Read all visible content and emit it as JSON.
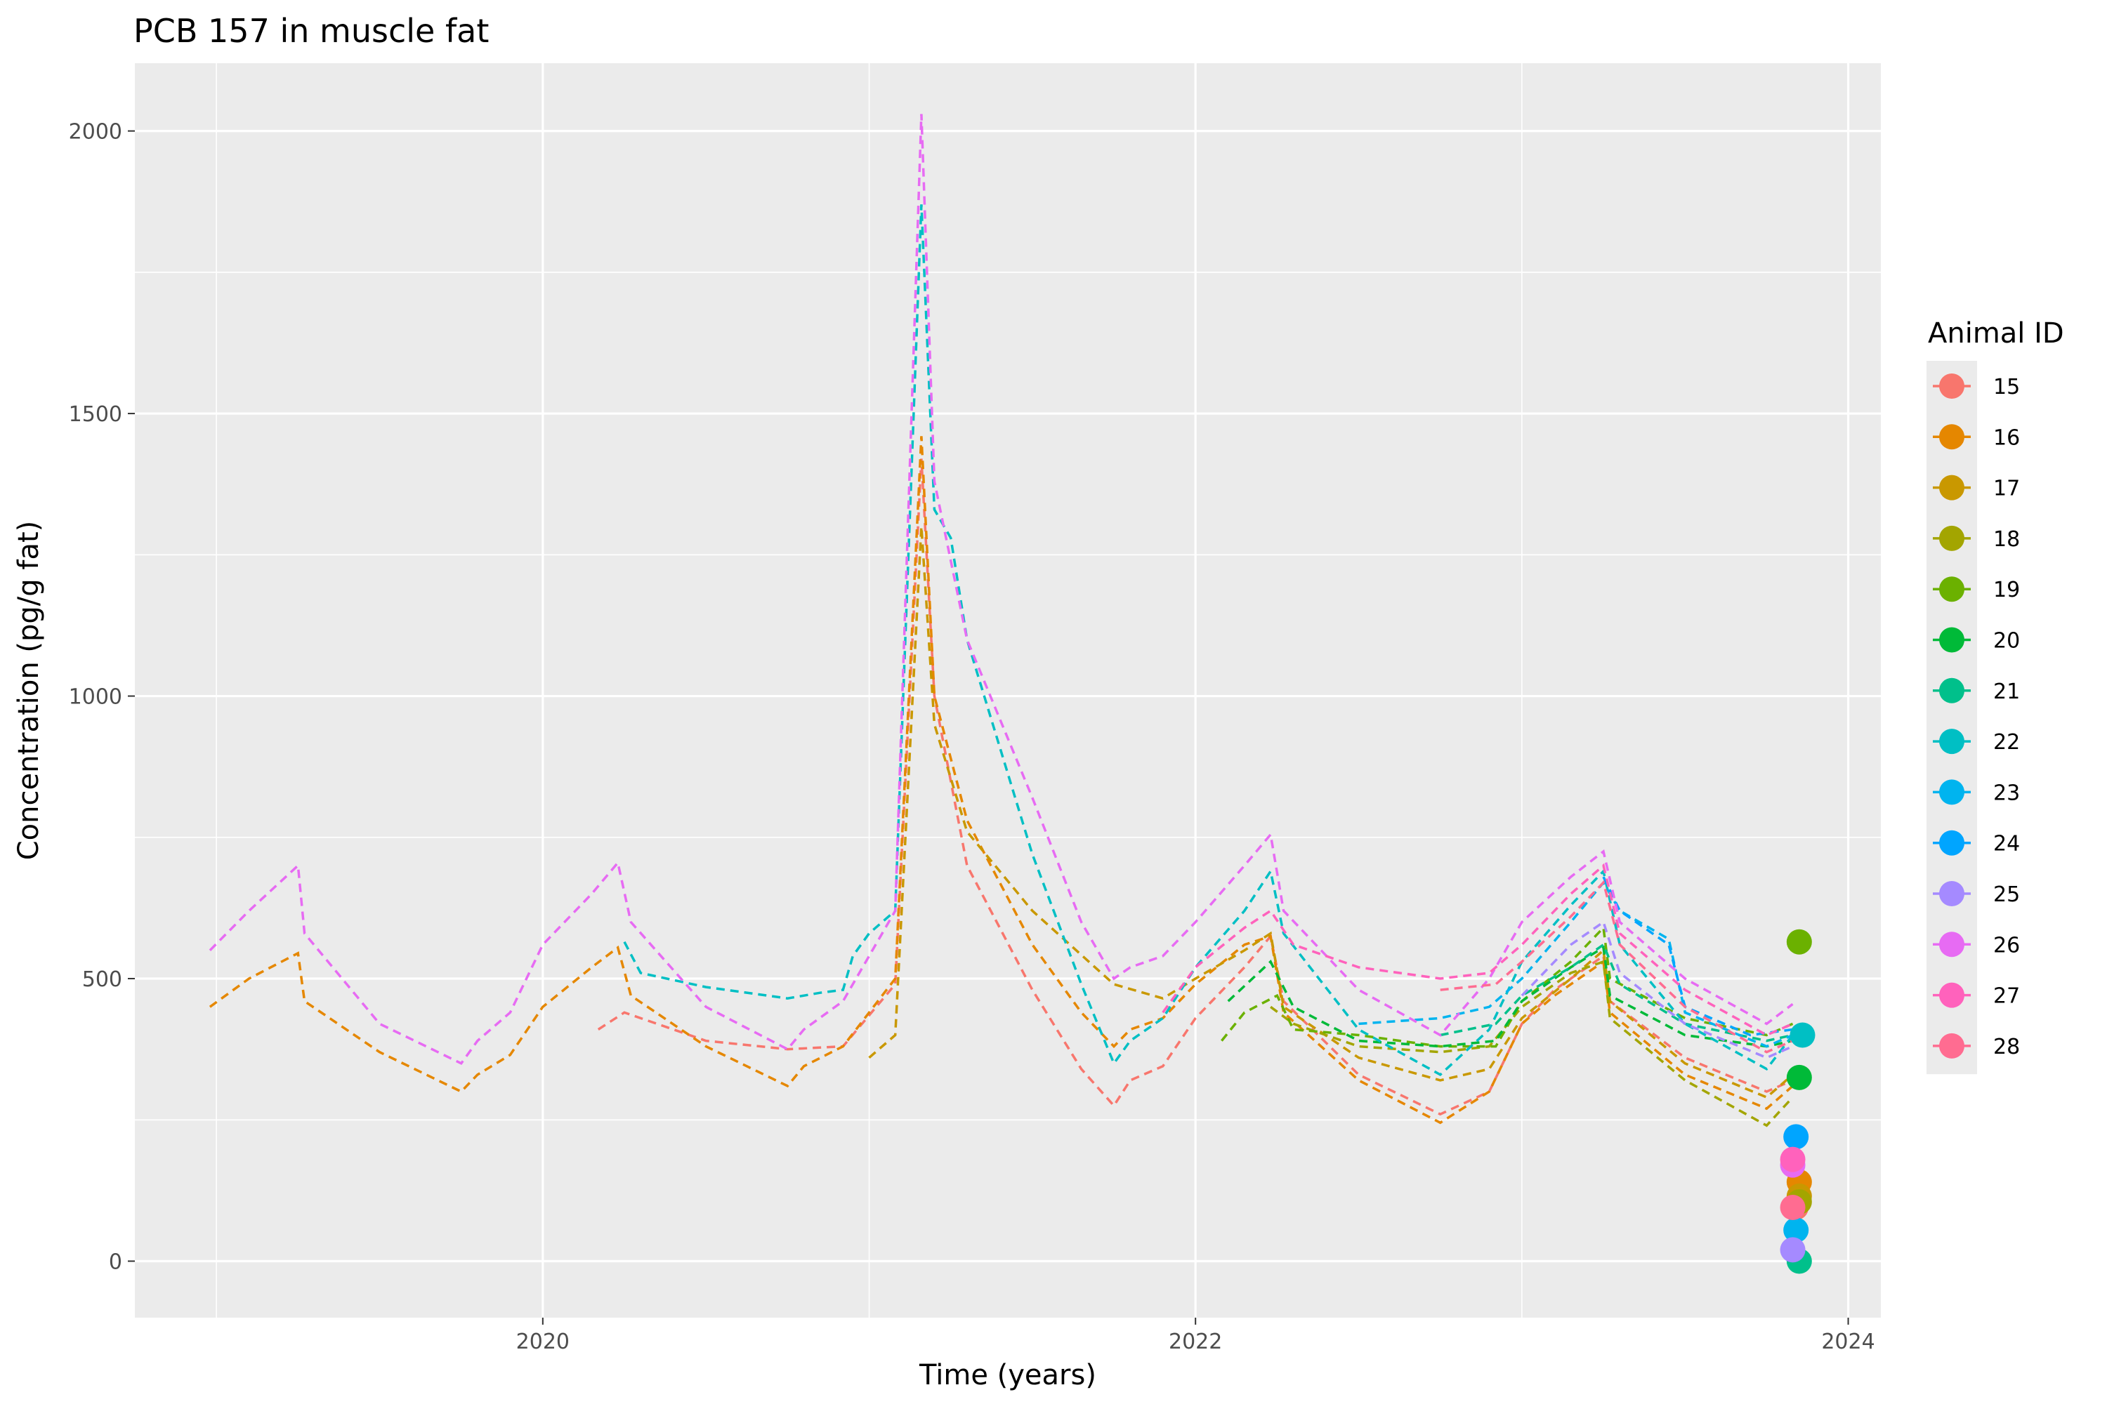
{
  "chart_data": {
    "type": "line",
    "title": "PCB 157  in muscle fat",
    "xlabel": "Time (years)",
    "ylabel": "Concentration (pg/g fat)",
    "xlim": [
      2018.75,
      2024.1
    ],
    "ylim": [
      -100,
      2120
    ],
    "x_ticks": [
      2020,
      2022,
      2024
    ],
    "x_tick_labels": [
      "2020",
      "2022",
      "2024"
    ],
    "y_ticks": [
      0,
      500,
      1000,
      1500,
      2000
    ],
    "y_tick_labels": [
      "0",
      "500",
      "1000",
      "1500",
      "2000"
    ],
    "grid": true,
    "legend": {
      "title": "Animal ID",
      "position": "right"
    },
    "series": [
      {
        "name": "15",
        "color": "#F8766D",
        "line": [
          [
            2020.17,
            410
          ],
          [
            2020.25,
            440
          ],
          [
            2020.5,
            390
          ],
          [
            2020.75,
            375
          ],
          [
            2020.92,
            380
          ],
          [
            2021.08,
            490
          ],
          [
            2021.16,
            1420
          ],
          [
            2021.2,
            1000
          ],
          [
            2021.3,
            700
          ],
          [
            2021.5,
            480
          ],
          [
            2021.65,
            340
          ],
          [
            2021.75,
            275
          ],
          [
            2021.8,
            320
          ],
          [
            2021.9,
            345
          ],
          [
            2022.0,
            430
          ],
          [
            2022.15,
            520
          ],
          [
            2022.23,
            575
          ],
          [
            2022.27,
            460
          ],
          [
            2022.5,
            330
          ],
          [
            2022.75,
            260
          ],
          [
            2022.9,
            300
          ],
          [
            2023.0,
            420
          ],
          [
            2023.1,
            480
          ],
          [
            2023.25,
            540
          ],
          [
            2023.27,
            460
          ],
          [
            2023.5,
            360
          ],
          [
            2023.75,
            300
          ],
          [
            2023.83,
            320
          ]
        ],
        "point": [
          2023.84,
          95
        ]
      },
      {
        "name": "16",
        "color": "#E58700",
        "line": [
          [
            2018.98,
            450
          ],
          [
            2019.1,
            500
          ],
          [
            2019.25,
            545
          ],
          [
            2019.27,
            460
          ],
          [
            2019.5,
            370
          ],
          [
            2019.75,
            300
          ],
          [
            2019.8,
            330
          ],
          [
            2019.9,
            365
          ],
          [
            2020.0,
            450
          ],
          [
            2020.15,
            520
          ],
          [
            2020.23,
            555
          ],
          [
            2020.27,
            470
          ],
          [
            2020.5,
            380
          ],
          [
            2020.75,
            310
          ],
          [
            2020.8,
            345
          ],
          [
            2020.92,
            380
          ],
          [
            2021.08,
            500
          ],
          [
            2021.16,
            1460
          ],
          [
            2021.2,
            1000
          ],
          [
            2021.3,
            780
          ],
          [
            2021.5,
            560
          ],
          [
            2021.65,
            440
          ],
          [
            2021.75,
            380
          ],
          [
            2021.8,
            410
          ],
          [
            2021.9,
            430
          ],
          [
            2022.0,
            490
          ],
          [
            2022.15,
            560
          ],
          [
            2022.23,
            575
          ],
          [
            2022.27,
            440
          ],
          [
            2022.5,
            320
          ],
          [
            2022.75,
            245
          ],
          [
            2022.9,
            300
          ],
          [
            2023.0,
            420
          ],
          [
            2023.1,
            470
          ],
          [
            2023.25,
            530
          ],
          [
            2023.27,
            440
          ],
          [
            2023.5,
            330
          ],
          [
            2023.75,
            270
          ],
          [
            2023.83,
            310
          ]
        ],
        "point": [
          2023.85,
          140
        ]
      },
      {
        "name": "17",
        "color": "#C99800",
        "line": [
          [
            2021.0,
            360
          ],
          [
            2021.08,
            400
          ],
          [
            2021.16,
            1300
          ],
          [
            2021.2,
            950
          ],
          [
            2021.3,
            760
          ],
          [
            2021.5,
            620
          ],
          [
            2021.75,
            490
          ],
          [
            2021.9,
            465
          ],
          [
            2022.0,
            500
          ],
          [
            2022.15,
            550
          ],
          [
            2022.23,
            580
          ],
          [
            2022.27,
            450
          ],
          [
            2022.5,
            360
          ],
          [
            2022.75,
            320
          ],
          [
            2022.9,
            340
          ],
          [
            2023.0,
            430
          ],
          [
            2023.15,
            500
          ],
          [
            2023.25,
            550
          ],
          [
            2023.27,
            460
          ],
          [
            2023.5,
            350
          ],
          [
            2023.75,
            290
          ],
          [
            2023.83,
            330
          ]
        ],
        "point": [
          2023.85,
          115
        ]
      },
      {
        "name": "18",
        "color": "#A3A500",
        "line": [
          [
            2022.23,
            450
          ],
          [
            2022.3,
            420
          ],
          [
            2022.5,
            380
          ],
          [
            2022.75,
            370
          ],
          [
            2022.9,
            380
          ],
          [
            2023.0,
            450
          ],
          [
            2023.15,
            510
          ],
          [
            2023.25,
            530
          ],
          [
            2023.27,
            430
          ],
          [
            2023.5,
            320
          ],
          [
            2023.75,
            240
          ],
          [
            2023.83,
            290
          ]
        ],
        "point": [
          2023.85,
          105
        ]
      },
      {
        "name": "19",
        "color": "#6BB100",
        "line": [
          [
            2022.08,
            390
          ],
          [
            2022.15,
            440
          ],
          [
            2022.25,
            470
          ],
          [
            2022.3,
            410
          ],
          [
            2022.5,
            400
          ],
          [
            2022.75,
            380
          ],
          [
            2022.92,
            380
          ],
          [
            2023.0,
            460
          ],
          [
            2023.15,
            530
          ],
          [
            2023.25,
            590
          ],
          [
            2023.27,
            500
          ],
          [
            2023.5,
            430
          ],
          [
            2023.75,
            400
          ],
          [
            2023.83,
            420
          ]
        ],
        "point": [
          2023.85,
          565
        ]
      },
      {
        "name": "20",
        "color": "#00BA38",
        "line": [
          [
            2022.1,
            460
          ],
          [
            2022.23,
            530
          ],
          [
            2022.3,
            450
          ],
          [
            2022.5,
            390
          ],
          [
            2022.75,
            380
          ],
          [
            2022.92,
            390
          ],
          [
            2023.0,
            460
          ],
          [
            2023.15,
            520
          ],
          [
            2023.25,
            555
          ],
          [
            2023.27,
            470
          ],
          [
            2023.5,
            400
          ],
          [
            2023.75,
            380
          ],
          [
            2023.83,
            390
          ]
        ],
        "point": [
          2023.85,
          325
        ]
      },
      {
        "name": "21",
        "color": "#00C08B",
        "line": [
          [
            2022.75,
            400
          ],
          [
            2022.92,
            420
          ],
          [
            2023.0,
            470
          ],
          [
            2023.15,
            520
          ],
          [
            2023.25,
            560
          ],
          [
            2023.3,
            490
          ],
          [
            2023.5,
            420
          ],
          [
            2023.75,
            390
          ],
          [
            2023.83,
            400
          ]
        ],
        "point": [
          2023.85,
          0
        ]
      },
      {
        "name": "22",
        "color": "#00BFC4",
        "line": [
          [
            2020.25,
            565
          ],
          [
            2020.3,
            510
          ],
          [
            2020.5,
            485
          ],
          [
            2020.75,
            465
          ],
          [
            2020.85,
            475
          ],
          [
            2020.92,
            480
          ],
          [
            2020.95,
            540
          ],
          [
            2021.0,
            580
          ],
          [
            2021.08,
            620
          ],
          [
            2021.16,
            1870
          ],
          [
            2021.2,
            1330
          ],
          [
            2021.25,
            1280
          ],
          [
            2021.3,
            1100
          ],
          [
            2021.5,
            720
          ],
          [
            2021.65,
            490
          ],
          [
            2021.75,
            350
          ],
          [
            2021.8,
            390
          ],
          [
            2021.9,
            430
          ],
          [
            2022.0,
            520
          ],
          [
            2022.15,
            620
          ],
          [
            2022.23,
            690
          ],
          [
            2022.27,
            580
          ],
          [
            2022.5,
            410
          ],
          [
            2022.75,
            330
          ],
          [
            2022.9,
            410
          ],
          [
            2023.0,
            530
          ],
          [
            2023.15,
            630
          ],
          [
            2023.25,
            690
          ],
          [
            2023.3,
            560
          ],
          [
            2023.5,
            420
          ],
          [
            2023.75,
            340
          ],
          [
            2023.83,
            400
          ]
        ],
        "point": [
          2023.86,
          400
        ]
      },
      {
        "name": "23",
        "color": "#00B4EF",
        "line": [
          [
            2022.5,
            420
          ],
          [
            2022.75,
            430
          ],
          [
            2022.9,
            450
          ],
          [
            2023.0,
            500
          ],
          [
            2023.15,
            600
          ],
          [
            2023.25,
            670
          ],
          [
            2023.3,
            620
          ],
          [
            2023.45,
            570
          ],
          [
            2023.5,
            440
          ],
          [
            2023.75,
            380
          ],
          [
            2023.83,
            400
          ]
        ],
        "point": [
          2023.84,
          55
        ]
      },
      {
        "name": "24",
        "color": "#00A5FF",
        "line": [
          [
            2023.25,
            680
          ],
          [
            2023.3,
            620
          ],
          [
            2023.45,
            560
          ],
          [
            2023.5,
            450
          ],
          [
            2023.7,
            400
          ],
          [
            2023.83,
            410
          ]
        ],
        "point": [
          2023.84,
          220
        ]
      },
      {
        "name": "25",
        "color": "#A58AFF",
        "line": [
          [
            2023.0,
            470
          ],
          [
            2023.15,
            560
          ],
          [
            2023.25,
            600
          ],
          [
            2023.3,
            510
          ],
          [
            2023.5,
            420
          ],
          [
            2023.75,
            360
          ],
          [
            2023.83,
            380
          ]
        ],
        "point": [
          2023.83,
          20
        ]
      },
      {
        "name": "26",
        "color": "#E76BF3",
        "line": [
          [
            2018.98,
            550
          ],
          [
            2019.1,
            620
          ],
          [
            2019.25,
            700
          ],
          [
            2019.27,
            580
          ],
          [
            2019.5,
            420
          ],
          [
            2019.75,
            350
          ],
          [
            2019.8,
            390
          ],
          [
            2019.9,
            440
          ],
          [
            2020.0,
            560
          ],
          [
            2020.15,
            650
          ],
          [
            2020.23,
            705
          ],
          [
            2020.27,
            600
          ],
          [
            2020.5,
            450
          ],
          [
            2020.75,
            375
          ],
          [
            2020.8,
            410
          ],
          [
            2020.92,
            460
          ],
          [
            2021.08,
            620
          ],
          [
            2021.16,
            2030
          ],
          [
            2021.2,
            1380
          ],
          [
            2021.3,
            1100
          ],
          [
            2021.5,
            820
          ],
          [
            2021.65,
            600
          ],
          [
            2021.75,
            500
          ],
          [
            2021.8,
            520
          ],
          [
            2021.9,
            540
          ],
          [
            2022.0,
            600
          ],
          [
            2022.15,
            700
          ],
          [
            2022.23,
            755
          ],
          [
            2022.27,
            620
          ],
          [
            2022.5,
            480
          ],
          [
            2022.75,
            400
          ],
          [
            2022.9,
            500
          ],
          [
            2023.0,
            600
          ],
          [
            2023.15,
            680
          ],
          [
            2023.25,
            725
          ],
          [
            2023.3,
            600
          ],
          [
            2023.5,
            500
          ],
          [
            2023.75,
            420
          ],
          [
            2023.83,
            455
          ]
        ],
        "point": [
          2023.83,
          170
        ]
      },
      {
        "name": "27",
        "color": "#FF62BC",
        "line": [
          [
            2021.9,
            440
          ],
          [
            2022.0,
            520
          ],
          [
            2022.15,
            590
          ],
          [
            2022.23,
            620
          ],
          [
            2022.3,
            560
          ],
          [
            2022.5,
            520
          ],
          [
            2022.75,
            500
          ],
          [
            2022.9,
            510
          ],
          [
            2023.0,
            560
          ],
          [
            2023.15,
            650
          ],
          [
            2023.25,
            700
          ],
          [
            2023.3,
            580
          ],
          [
            2023.5,
            480
          ],
          [
            2023.75,
            400
          ],
          [
            2023.83,
            420
          ]
        ],
        "point": [
          2023.83,
          180
        ]
      },
      {
        "name": "28",
        "color": "#FF6C91",
        "line": [
          [
            2022.75,
            480
          ],
          [
            2022.92,
            490
          ],
          [
            2023.0,
            530
          ],
          [
            2023.15,
            610
          ],
          [
            2023.25,
            670
          ],
          [
            2023.3,
            560
          ],
          [
            2023.5,
            450
          ],
          [
            2023.75,
            370
          ],
          [
            2023.83,
            390
          ]
        ],
        "point": [
          2023.83,
          95
        ]
      }
    ]
  }
}
